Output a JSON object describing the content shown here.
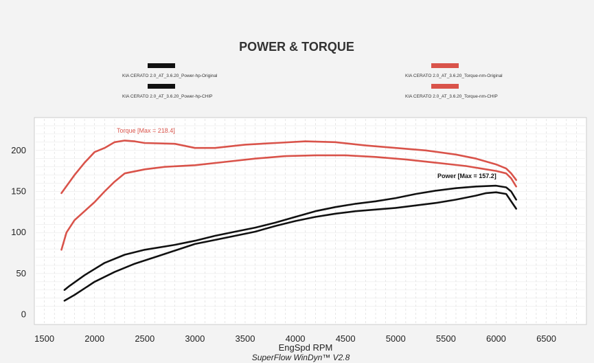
{
  "chart_data": {
    "type": "line",
    "title": "POWER & TORQUE",
    "xlabel": "EngSpd  RPM",
    "footer": "SuperFlow WinDyn™ V2.8",
    "xlim": [
      1400,
      6900
    ],
    "ylim": [
      -12,
      240
    ],
    "xticks": [
      "1500",
      "2000",
      "2500",
      "3000",
      "3500",
      "4000",
      "4500",
      "5000",
      "5500",
      "6000",
      "6500"
    ],
    "yticks": [
      "0",
      "50",
      "100",
      "150",
      "200"
    ],
    "grid": true,
    "colors": {
      "power": "#111111",
      "torque": "#d9534a"
    },
    "legend": [
      {
        "label": "KIA CERATO 2.0_AT_3.6.20_Power-hp-Original",
        "color": "#111111"
      },
      {
        "label": "KIA CERATO 2.0_AT_3.6.20_Power-hp-CHIP",
        "color": "#111111"
      },
      {
        "label": "KIA CERATO 2.0_AT_3.6.20_Torque-nm-Original",
        "color": "#d9534a"
      },
      {
        "label": "KIA CERATO 2.0_AT_3.6.20_Torque-nm-CHIP",
        "color": "#d9534a"
      }
    ],
    "annotations": [
      {
        "text": "Torque [Max = 218.4]",
        "color": "#d9534a"
      },
      {
        "text": "Power [Max = 157.2]",
        "color": "#111111"
      }
    ],
    "series": [
      {
        "name": "KIA CERATO 2.0_AT_3.6.20_Power-hp-Original",
        "color": "#111111",
        "x": [
          1700,
          1800,
          2000,
          2200,
          2400,
          2600,
          2800,
          3000,
          3200,
          3400,
          3600,
          3800,
          4000,
          4200,
          4400,
          4600,
          4800,
          5000,
          5200,
          5400,
          5600,
          5800,
          5900,
          6000,
          6100,
          6200
        ],
        "y": [
          17,
          24,
          40,
          52,
          62,
          70,
          78,
          86,
          91,
          96,
          101,
          108,
          114,
          119,
          123,
          126,
          128,
          130,
          133,
          136,
          140,
          145,
          148,
          149,
          147,
          129
        ]
      },
      {
        "name": "KIA CERATO 2.0_AT_3.6.20_Power-hp-CHIP",
        "color": "#111111",
        "x": [
          1700,
          1750,
          1900,
          2100,
          2300,
          2500,
          2800,
          3000,
          3200,
          3400,
          3600,
          3800,
          4000,
          4200,
          4400,
          4600,
          4800,
          5000,
          5200,
          5400,
          5600,
          5800,
          6000,
          6100,
          6150,
          6200
        ],
        "y": [
          30,
          35,
          48,
          63,
          73,
          79,
          85,
          90,
          96,
          101,
          106,
          112,
          119,
          126,
          131,
          135,
          138,
          142,
          147,
          151,
          154,
          156,
          157,
          155,
          150,
          140
        ]
      },
      {
        "name": "KIA CERATO 2.0_AT_3.6.20_Torque-nm-Original",
        "color": "#d9534a",
        "x": [
          1670,
          1720,
          1800,
          2000,
          2100,
          2200,
          2300,
          2500,
          2700,
          3000,
          3300,
          3600,
          3900,
          4200,
          4500,
          4800,
          5100,
          5400,
          5700,
          5900,
          6000,
          6100,
          6150,
          6200
        ],
        "y": [
          79,
          100,
          115,
          137,
          150,
          162,
          172,
          177,
          180,
          182,
          186,
          190,
          193,
          194,
          194,
          192,
          189,
          185,
          181,
          177,
          175,
          172,
          166,
          156
        ]
      },
      {
        "name": "KIA CERATO 2.0_AT_3.6.20_Torque-nm-CHIP",
        "color": "#d9534a",
        "x": [
          1670,
          1800,
          1900,
          2000,
          2100,
          2200,
          2300,
          2400,
          2500,
          2800,
          3000,
          3200,
          3500,
          3800,
          4100,
          4400,
          4700,
          5000,
          5300,
          5600,
          5800,
          6000,
          6100,
          6150,
          6200
        ],
        "y": [
          148,
          170,
          185,
          198,
          203,
          210,
          212,
          211,
          209,
          208,
          203,
          203,
          207,
          209,
          211,
          210,
          206,
          203,
          200,
          195,
          190,
          183,
          178,
          172,
          164
        ]
      }
    ]
  }
}
